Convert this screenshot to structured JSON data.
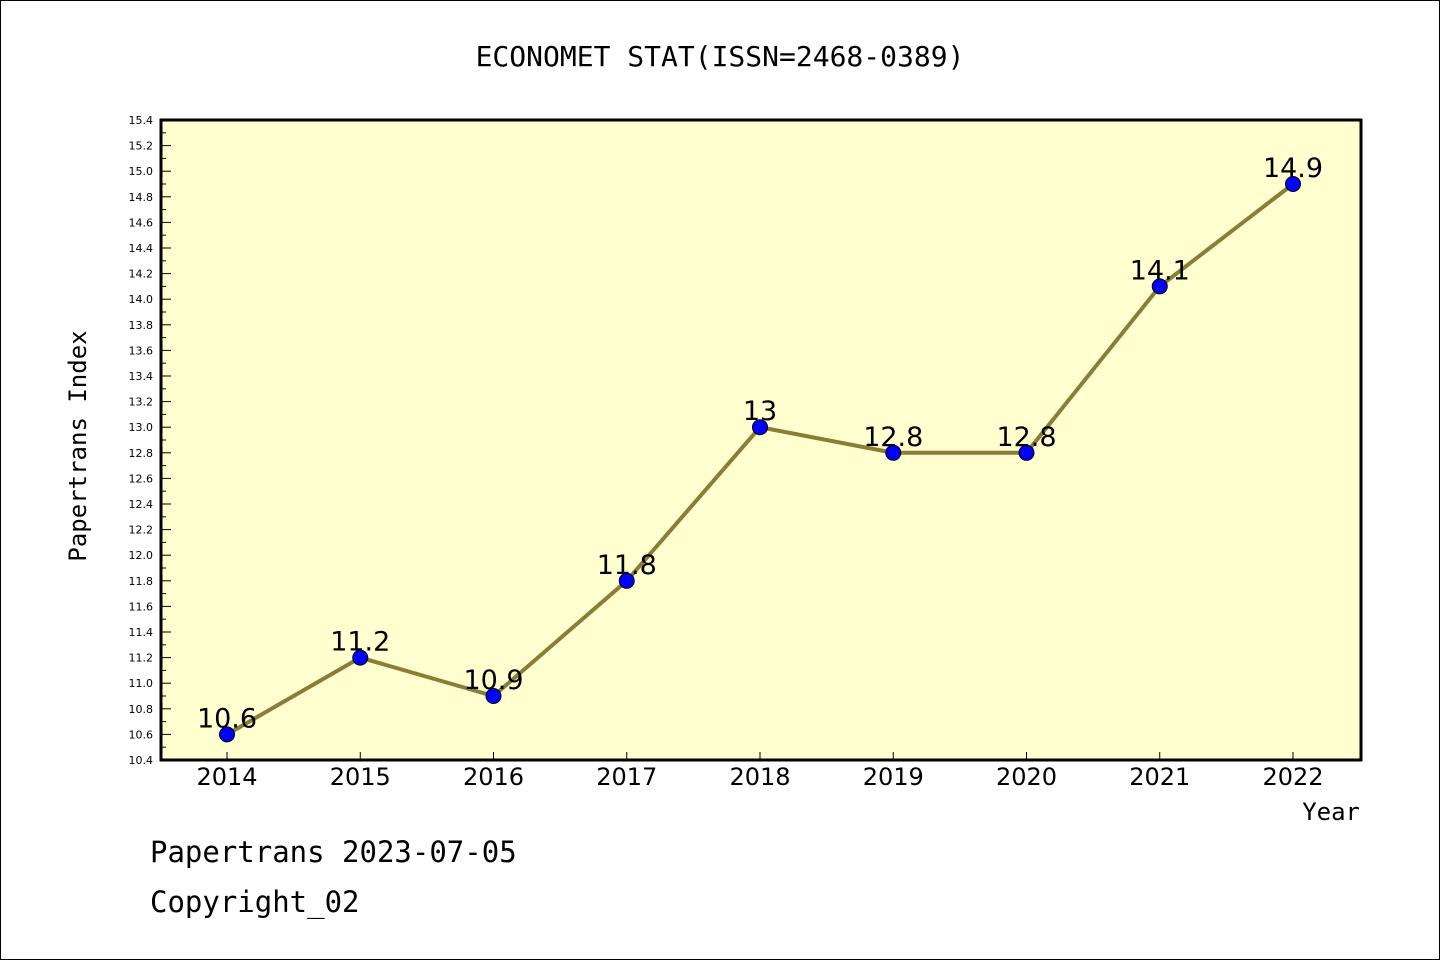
{
  "chart_data": {
    "type": "line",
    "title": "ECONOMET STAT(ISSN=2468-0389)",
    "xlabel": "Year",
    "ylabel": "Papertrans Index",
    "categories": [
      "2014",
      "2015",
      "2016",
      "2017",
      "2018",
      "2019",
      "2020",
      "2021",
      "2022"
    ],
    "series": [
      {
        "values": [
          10.6,
          11.2,
          10.9,
          11.8,
          13.0,
          12.8,
          12.8,
          14.1,
          14.9
        ]
      }
    ],
    "data_labels": [
      "10.6",
      "11.2",
      "10.9",
      "11.8",
      "13",
      "12.8",
      "12.8",
      "14.1",
      "14.9"
    ],
    "ylim": [
      10.4,
      15.4
    ],
    "yticks": [
      "10.4",
      "10.6",
      "10.8",
      "11.0",
      "11.2",
      "11.4",
      "11.6",
      "11.8",
      "12.0",
      "12.2",
      "12.4",
      "12.6",
      "12.8",
      "13.0",
      "13.2",
      "13.4",
      "13.6",
      "13.8",
      "14.0",
      "14.2",
      "14.4",
      "14.6",
      "14.8",
      "15.0",
      "15.2",
      "15.4"
    ],
    "grid": false,
    "colors": {
      "plot_bg": "#ffffd0",
      "line": "#8b7d35",
      "marker": "#0000ff"
    }
  },
  "footer": {
    "line1": "Papertrans 2023-07-05",
    "line2": "Copyright_02"
  }
}
